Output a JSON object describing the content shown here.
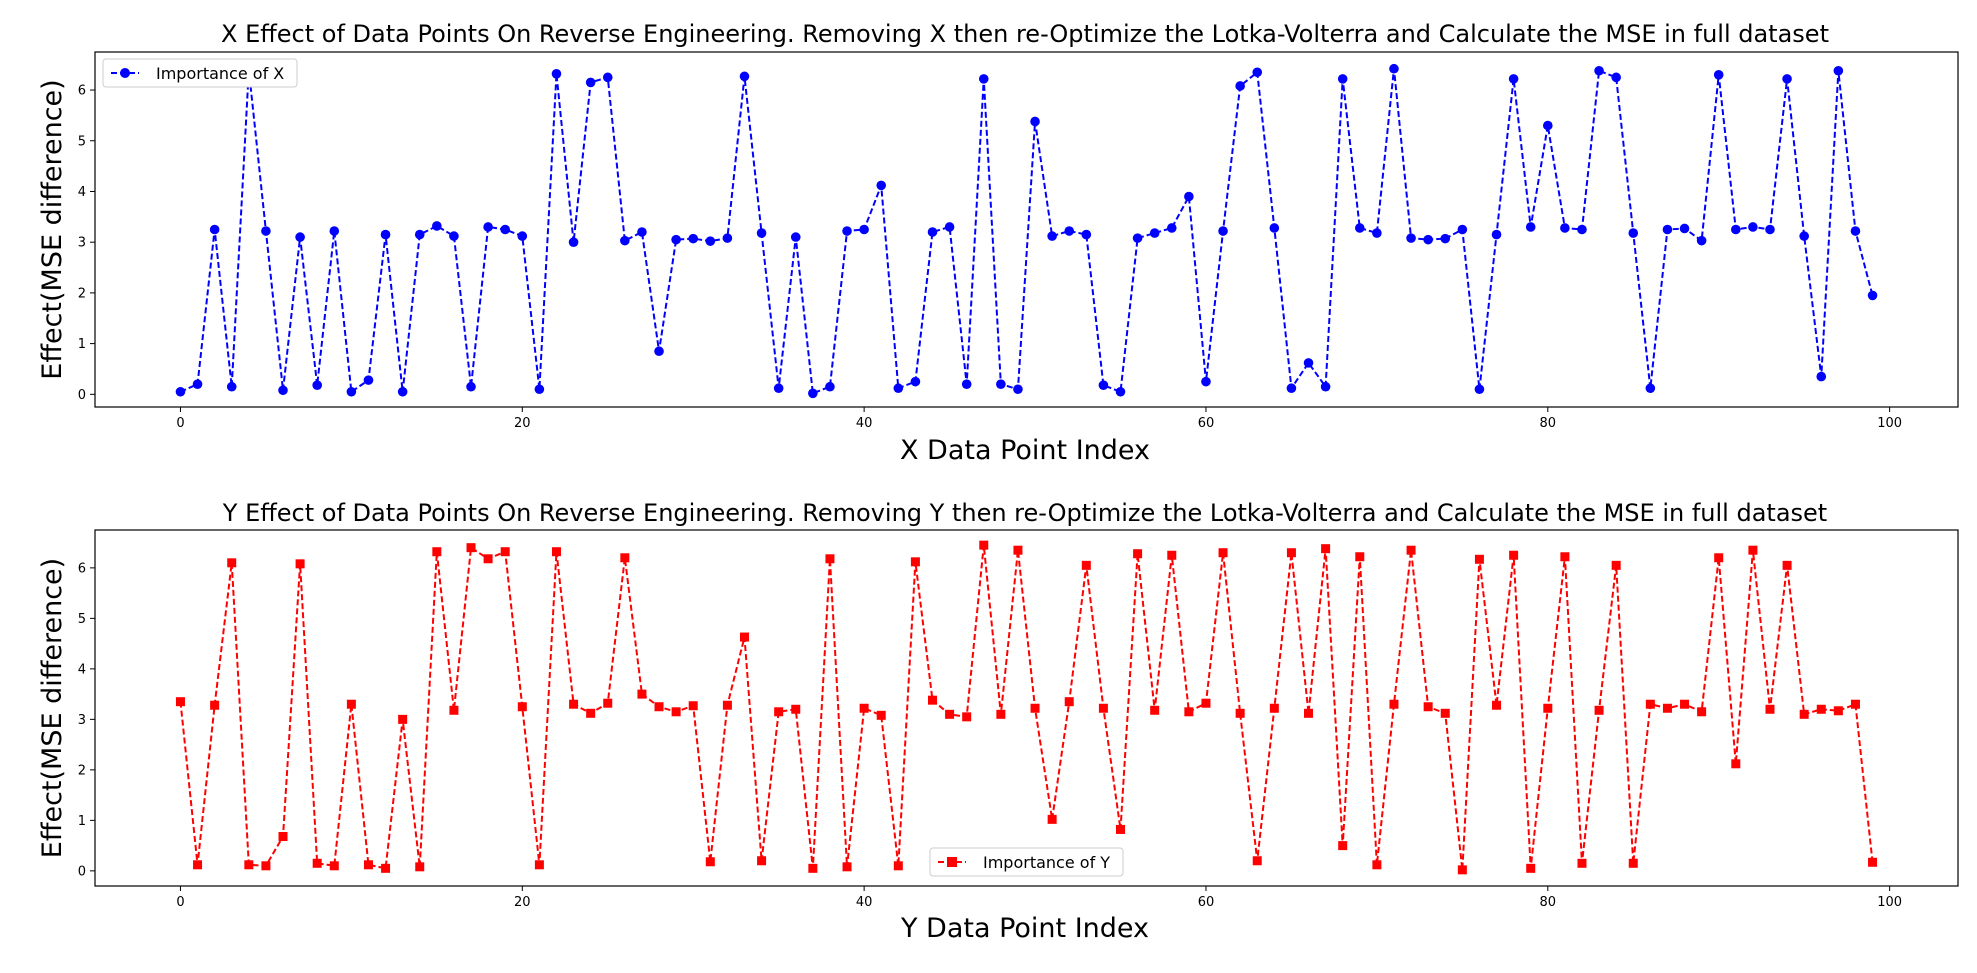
{
  "chart_data": [
    {
      "type": "line",
      "title": "X Effect of Data Points On Reverse Engineering. Removing X then re-Optimize the Lotka-Volterra and Calculate the MSE in full dataset",
      "xlabel": "X Data Point Index",
      "ylabel": "Effect(MSE difference)",
      "xlim": [
        -5,
        104
      ],
      "ylim": [
        -0.25,
        6.75
      ],
      "xticks": [
        0,
        20,
        40,
        60,
        80,
        100
      ],
      "yticks": [
        0,
        1,
        2,
        3,
        4,
        5,
        6
      ],
      "legend": "upper-left",
      "series": [
        {
          "name": "Importance of X",
          "color": "#0000ff",
          "marker": "circle",
          "linestyle": "dashed",
          "x": [
            0,
            1,
            2,
            3,
            4,
            5,
            6,
            7,
            8,
            9,
            10,
            11,
            12,
            13,
            14,
            15,
            16,
            17,
            18,
            19,
            20,
            21,
            22,
            23,
            24,
            25,
            26,
            27,
            28,
            29,
            30,
            31,
            32,
            33,
            34,
            35,
            36,
            37,
            38,
            39,
            40,
            41,
            42,
            43,
            44,
            45,
            46,
            47,
            48,
            49,
            50,
            51,
            52,
            53,
            54,
            55,
            56,
            57,
            58,
            59,
            60,
            61,
            62,
            63,
            64,
            65,
            66,
            67,
            68,
            69,
            70,
            71,
            72,
            73,
            74,
            75,
            76,
            77,
            78,
            79,
            80,
            81,
            82,
            83,
            84,
            85,
            86,
            87,
            88,
            89,
            90,
            91,
            92,
            93,
            94,
            95,
            96,
            97,
            98,
            99
          ],
          "y": [
            0.05,
            0.2,
            3.25,
            0.15,
            6.4,
            3.22,
            0.08,
            3.1,
            0.18,
            3.22,
            0.05,
            0.28,
            3.15,
            0.05,
            3.15,
            3.32,
            3.12,
            0.15,
            3.3,
            3.25,
            3.12,
            0.1,
            6.32,
            3.0,
            6.15,
            6.25,
            3.03,
            3.2,
            0.85,
            3.05,
            3.07,
            3.02,
            3.08,
            6.27,
            3.18,
            0.12,
            3.1,
            0.02,
            0.15,
            3.22,
            3.25,
            4.12,
            0.12,
            0.25,
            3.2,
            3.3,
            0.2,
            6.22,
            0.2,
            0.1,
            5.38,
            3.12,
            3.22,
            3.15,
            0.18,
            0.05,
            3.08,
            3.18,
            3.28,
            3.9,
            0.25,
            3.22,
            6.08,
            6.35,
            3.28,
            0.12,
            0.62,
            0.15,
            6.22,
            3.28,
            3.18,
            6.42,
            3.08,
            3.05,
            3.07,
            3.25,
            0.1,
            3.15,
            6.22,
            3.3,
            5.3,
            3.28,
            3.25,
            6.38,
            6.25,
            3.18,
            0.12,
            3.25,
            3.27,
            3.03,
            6.3,
            3.25,
            3.3,
            3.25,
            6.22,
            3.12,
            0.35,
            6.38,
            3.22,
            1.95
          ]
        }
      ]
    },
    {
      "type": "line",
      "title": "Y Effect of Data Points On Reverse Engineering. Removing Y then re-Optimize the Lotka-Volterra and Calculate the MSE in full dataset",
      "xlabel": "Y Data Point Index",
      "ylabel": "Effect(MSE difference)",
      "xlim": [
        -5,
        104
      ],
      "ylim": [
        -0.3,
        6.75
      ],
      "xticks": [
        0,
        20,
        40,
        60,
        80,
        100
      ],
      "yticks": [
        0,
        1,
        2,
        3,
        4,
        5,
        6
      ],
      "legend": "lower-center",
      "series": [
        {
          "name": "Importance of Y",
          "color": "#ff0000",
          "marker": "square",
          "linestyle": "dashed",
          "x": [
            0,
            1,
            2,
            3,
            4,
            5,
            6,
            7,
            8,
            9,
            10,
            11,
            12,
            13,
            14,
            15,
            16,
            17,
            18,
            19,
            20,
            21,
            22,
            23,
            24,
            25,
            26,
            27,
            28,
            29,
            30,
            31,
            32,
            33,
            34,
            35,
            36,
            37,
            38,
            39,
            40,
            41,
            42,
            43,
            44,
            45,
            46,
            47,
            48,
            49,
            50,
            51,
            52,
            53,
            54,
            55,
            56,
            57,
            58,
            59,
            60,
            61,
            62,
            63,
            64,
            65,
            66,
            67,
            68,
            69,
            70,
            71,
            72,
            73,
            74,
            75,
            76,
            77,
            78,
            79,
            80,
            81,
            82,
            83,
            84,
            85,
            86,
            87,
            88,
            89,
            90,
            91,
            92,
            93,
            94,
            95,
            96,
            97,
            98,
            99
          ],
          "y": [
            3.35,
            0.12,
            3.28,
            6.1,
            0.12,
            0.1,
            0.68,
            6.08,
            0.15,
            0.1,
            3.3,
            0.12,
            0.05,
            3.0,
            0.08,
            6.32,
            3.18,
            6.4,
            6.18,
            6.32,
            3.25,
            0.12,
            6.32,
            3.3,
            3.12,
            3.32,
            6.2,
            3.5,
            3.25,
            3.15,
            3.27,
            0.18,
            3.28,
            4.63,
            0.2,
            3.15,
            3.2,
            0.05,
            6.18,
            0.08,
            3.22,
            3.08,
            0.1,
            6.12,
            3.38,
            3.1,
            3.05,
            6.45,
            3.1,
            6.35,
            3.22,
            1.02,
            3.35,
            6.05,
            3.22,
            0.82,
            6.28,
            3.18,
            6.25,
            3.15,
            3.32,
            6.3,
            3.12,
            0.2,
            3.22,
            6.3,
            3.12,
            6.38,
            0.5,
            6.22,
            0.12,
            3.3,
            6.35,
            3.25,
            3.12,
            0.02,
            6.17,
            3.28,
            6.25,
            0.05,
            3.22,
            6.22,
            0.15,
            3.18,
            6.05,
            0.15,
            3.3,
            3.22,
            3.3,
            3.15,
            6.2,
            2.12,
            6.35,
            3.2,
            6.05,
            3.1,
            3.2,
            3.17,
            3.3,
            0.17
          ]
        }
      ]
    }
  ]
}
